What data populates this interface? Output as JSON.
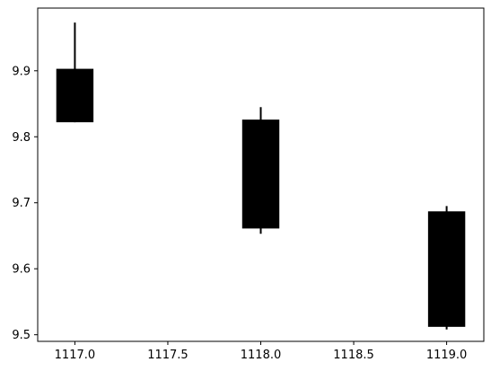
{
  "chart_data": {
    "type": "candlestick",
    "title": "",
    "xlabel": "",
    "ylabel": "",
    "xlim": [
      1116.8,
      1119.2
    ],
    "ylim": [
      9.49,
      9.995
    ],
    "x_ticks": [
      "1117.0",
      "1117.5",
      "1118.0",
      "1118.5",
      "1119.0"
    ],
    "x_tick_values": [
      1117.0,
      1117.5,
      1118.0,
      1118.5,
      1119.0
    ],
    "y_ticks": [
      "9.5",
      "9.6",
      "9.7",
      "9.8",
      "9.9"
    ],
    "y_tick_values": [
      9.5,
      9.6,
      9.7,
      9.8,
      9.9
    ],
    "candles": [
      {
        "x": 1117.0,
        "body_low": 9.822,
        "body_high": 9.903,
        "wick_low": 9.822,
        "wick_high": 9.973
      },
      {
        "x": 1118.0,
        "body_low": 9.661,
        "body_high": 9.826,
        "wick_low": 9.653,
        "wick_high": 9.845
      },
      {
        "x": 1119.0,
        "body_low": 9.512,
        "body_high": 9.687,
        "wick_low": 9.508,
        "wick_high": 9.695
      }
    ],
    "candle_width": 0.2,
    "grid": false,
    "colors": {
      "body": "#000000",
      "wick": "#000000",
      "axes": "#000000",
      "background": "#ffffff"
    }
  }
}
